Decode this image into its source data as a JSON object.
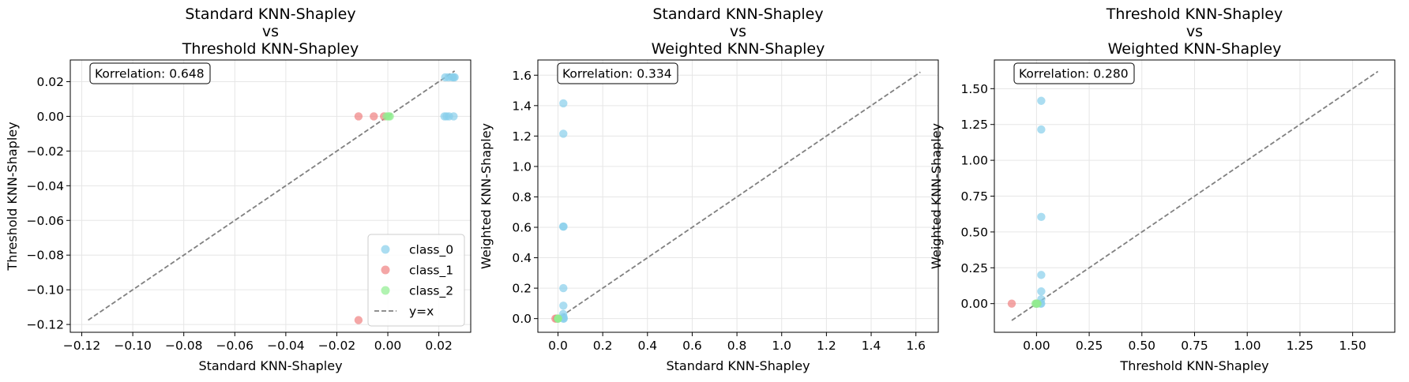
{
  "colors": {
    "class_0": "#87ceeb",
    "class_1": "#f08080",
    "class_2": "#90ee90",
    "identity_line": "#808080",
    "grid": "#e6e6e6"
  },
  "chart_data": [
    {
      "type": "scatter",
      "title_lines": [
        "Standard KNN-Shapley",
        "vs",
        "Threshold KNN-Shapley"
      ],
      "xlabel": "Standard KNN-Shapley",
      "ylabel": "Threshold KNN-Shapley",
      "xlim": [
        -0.1245,
        0.0325
      ],
      "ylim": [
        -0.1245,
        0.0325
      ],
      "xticks": [
        -0.12,
        -0.1,
        -0.08,
        -0.06,
        -0.04,
        -0.02,
        0.0,
        0.02
      ],
      "xtick_labels": [
        "−0.12",
        "−0.10",
        "−0.08",
        "−0.06",
        "−0.04",
        "−0.02",
        "0.00",
        "0.02"
      ],
      "yticks": [
        -0.12,
        -0.1,
        -0.08,
        -0.06,
        -0.04,
        -0.02,
        0.0,
        0.02
      ],
      "ytick_labels": [
        "−0.12",
        "−0.10",
        "−0.08",
        "−0.06",
        "−0.04",
        "−0.02",
        "0.00",
        "0.02"
      ],
      "annotation": "Korrelation: 0.648",
      "identity_line": [
        -0.1175,
        0.0262
      ],
      "grid": true,
      "legend": {
        "placement": "lower-right",
        "entries": [
          {
            "label": "class_0",
            "kind": "marker",
            "color_key": "class_0"
          },
          {
            "label": "class_1",
            "kind": "marker",
            "color_key": "class_1"
          },
          {
            "label": "class_2",
            "kind": "marker",
            "color_key": "class_2"
          },
          {
            "label": "y=x",
            "kind": "line",
            "color_key": "identity_line"
          }
        ]
      },
      "series": [
        {
          "name": "class_0",
          "color_key": "class_0",
          "points": [
            [
              0.0225,
              0.0225
            ],
            [
              0.0238,
              0.0225
            ],
            [
              0.0252,
              0.0225
            ],
            [
              0.0258,
              0.0225
            ],
            [
              0.0262,
              0.0225
            ],
            [
              0.0222,
              0.0
            ],
            [
              0.023,
              0.0
            ],
            [
              0.024,
              0.0
            ],
            [
              0.0258,
              0.0
            ]
          ]
        },
        {
          "name": "class_1",
          "color_key": "class_1",
          "points": [
            [
              -0.0115,
              0.0
            ],
            [
              -0.0055,
              0.0
            ],
            [
              -0.0015,
              0.0
            ],
            [
              -0.0115,
              -0.1175
            ]
          ]
        },
        {
          "name": "class_2",
          "color_key": "class_2",
          "points": [
            [
              -0.0005,
              0.0
            ],
            [
              0.0003,
              0.0
            ],
            [
              0.0008,
              0.0
            ]
          ]
        }
      ]
    },
    {
      "type": "scatter",
      "title_lines": [
        "Standard KNN-Shapley",
        "vs",
        "Weighted KNN-Shapley"
      ],
      "xlabel": "Standard KNN-Shapley",
      "ylabel": "Weighted KNN-Shapley",
      "xlim": [
        -0.09,
        1.7
      ],
      "ylim": [
        -0.09,
        1.7
      ],
      "xticks": [
        0.0,
        0.2,
        0.4,
        0.6,
        0.8,
        1.0,
        1.2,
        1.4,
        1.6
      ],
      "xtick_labels": [
        "0.0",
        "0.2",
        "0.4",
        "0.6",
        "0.8",
        "1.0",
        "1.2",
        "1.4",
        "1.6"
      ],
      "yticks": [
        0.0,
        0.2,
        0.4,
        0.6,
        0.8,
        1.0,
        1.2,
        1.4,
        1.6
      ],
      "ytick_labels": [
        "0.0",
        "0.2",
        "0.4",
        "0.6",
        "0.8",
        "1.0",
        "1.2",
        "1.4",
        "1.6"
      ],
      "annotation": "Korrelation: 0.334",
      "identity_line": [
        -0.0125,
        1.62
      ],
      "grid": true,
      "series": [
        {
          "name": "class_0",
          "color_key": "class_0",
          "points": [
            [
              0.024,
              1.415
            ],
            [
              0.024,
              1.215
            ],
            [
              0.023,
              0.605
            ],
            [
              0.025,
              0.605
            ],
            [
              0.024,
              0.2
            ],
            [
              0.024,
              0.085
            ],
            [
              0.023,
              0.03
            ],
            [
              0.025,
              0.01
            ],
            [
              0.024,
              0.0
            ],
            [
              0.026,
              0.0
            ]
          ]
        },
        {
          "name": "class_1",
          "color_key": "class_1",
          "points": [
            [
              -0.0115,
              0.0
            ],
            [
              -0.0055,
              0.0
            ],
            [
              -0.0015,
              0.0
            ]
          ]
        },
        {
          "name": "class_2",
          "color_key": "class_2",
          "points": [
            [
              -0.0005,
              0.0
            ],
            [
              0.0003,
              0.0
            ],
            [
              0.0008,
              0.0
            ]
          ]
        }
      ]
    },
    {
      "type": "scatter",
      "title_lines": [
        "Threshold KNN-Shapley",
        "vs",
        "Weighted KNN-Shapley"
      ],
      "xlabel": "Threshold KNN-Shapley",
      "ylabel": "Weighted KNN-Shapley",
      "xlim": [
        -0.2,
        1.7
      ],
      "ylim": [
        -0.2,
        1.7
      ],
      "xticks": [
        0.0,
        0.25,
        0.5,
        0.75,
        1.0,
        1.25,
        1.5
      ],
      "xtick_labels": [
        "0.00",
        "0.25",
        "0.50",
        "0.75",
        "1.00",
        "1.25",
        "1.50"
      ],
      "yticks": [
        0.0,
        0.25,
        0.5,
        0.75,
        1.0,
        1.25,
        1.5
      ],
      "ytick_labels": [
        "0.00",
        "0.25",
        "0.50",
        "0.75",
        "1.00",
        "1.25",
        "1.50"
      ],
      "annotation": "Korrelation: 0.280",
      "identity_line": [
        -0.1175,
        1.62
      ],
      "grid": true,
      "series": [
        {
          "name": "class_0",
          "color_key": "class_0",
          "points": [
            [
              0.0225,
              1.415
            ],
            [
              0.0225,
              1.215
            ],
            [
              0.0225,
              0.605
            ],
            [
              0.0225,
              0.2
            ],
            [
              0.0225,
              0.085
            ],
            [
              0.0,
              0.0
            ],
            [
              0.0225,
              0.03
            ],
            [
              0.0225,
              0.0
            ],
            [
              0.02,
              0.0
            ]
          ]
        },
        {
          "name": "class_1",
          "color_key": "class_1",
          "points": [
            [
              -0.1175,
              0.0
            ],
            [
              0.0,
              0.0
            ]
          ]
        },
        {
          "name": "class_2",
          "color_key": "class_2",
          "points": [
            [
              -0.005,
              0.0
            ],
            [
              0.0,
              0.0
            ],
            [
              0.005,
              0.0
            ]
          ]
        }
      ]
    }
  ]
}
